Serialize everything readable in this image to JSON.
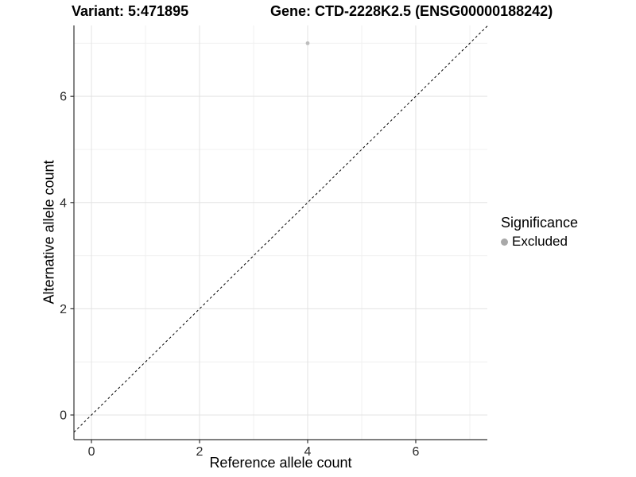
{
  "chart_data": {
    "type": "scatter",
    "title_left": "Variant: 5:471895",
    "title_right": "Gene: CTD-2228K2.5 (ENSG00000188242)",
    "xlabel": "Reference allele count",
    "ylabel": "Alternative allele count",
    "xlim": [
      -0.324,
      7.324
    ],
    "ylim": [
      -0.464,
      7.335
    ],
    "x_major_ticks": [
      0,
      2,
      4,
      6
    ],
    "y_major_ticks": [
      0,
      2,
      4,
      6
    ],
    "x_minor_ticks": [
      1,
      3,
      5,
      7
    ],
    "y_minor_ticks": [
      1,
      3,
      5,
      7
    ],
    "grid": true,
    "points": [
      {
        "x": 4,
        "y": 7,
        "series": "Excluded"
      }
    ],
    "reference_line": {
      "type": "identity",
      "slope": 1,
      "intercept": 0,
      "style": "dashed"
    },
    "legend": {
      "position": "right",
      "title": "Significance",
      "items": [
        {
          "label": "Excluded",
          "color": "#a9a9a9"
        }
      ]
    }
  },
  "style": {
    "background": "#ffffff",
    "grid_major_color": "#e3e3e3",
    "grid_minor_color": "#f0f0f0",
    "axis_line_color": "#333333",
    "tick_color": "#333333",
    "tick_label_color": "#2b2b2b",
    "tick_label_size": 16,
    "point_color": "#bdbdbd",
    "point_radius": 2.4,
    "dashed_line_color": "#000000",
    "text_color": "#000000"
  }
}
